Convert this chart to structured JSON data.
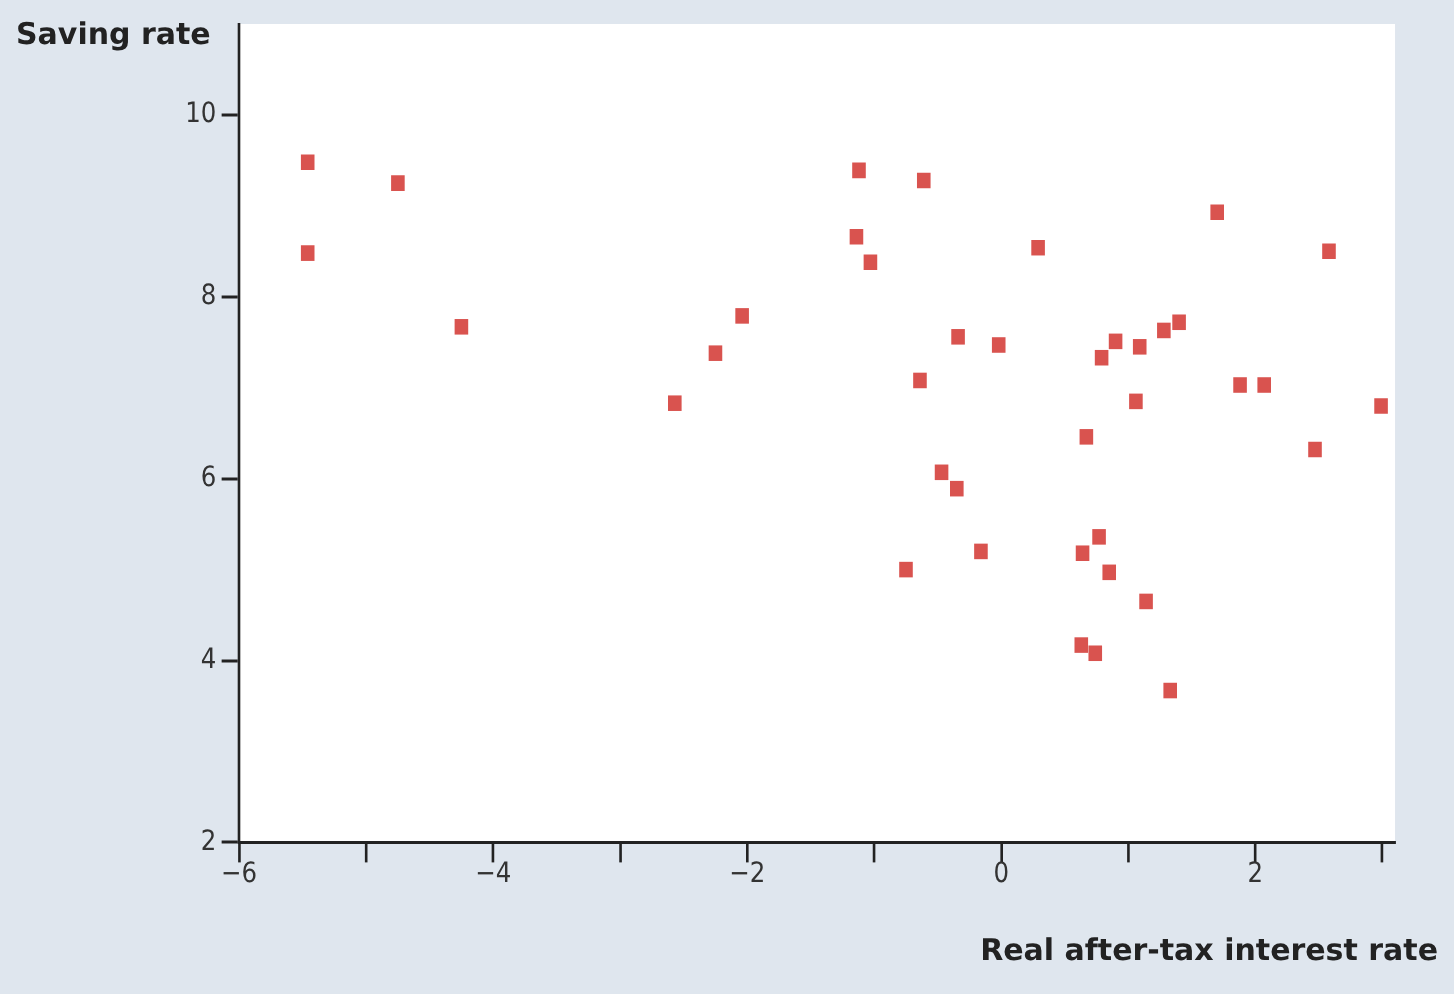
{
  "chart_data": {
    "type": "scatter",
    "xlabel": "Real after-tax interest rate",
    "ylabel": "Saving rate",
    "x": [
      -5.46,
      -5.46,
      -4.75,
      -4.25,
      -2.57,
      -2.25,
      -2.04,
      -1.12,
      -1.14,
      -1.03,
      -0.61,
      -0.64,
      -0.34,
      -0.02,
      -0.47,
      -0.35,
      -0.75,
      -0.16,
      0.29,
      1.7,
      0.67,
      0.79,
      0.9,
      1.09,
      1.28,
      1.4,
      1.06,
      1.88,
      2.07,
      2.47,
      2.58,
      2.99,
      0.64,
      0.77,
      0.85,
      1.14,
      0.63,
      0.74,
      1.33
    ],
    "series": [
      {
        "color": "#d9534f",
        "values": [
          9.48,
          8.48,
          9.25,
          7.67,
          6.83,
          7.38,
          7.79,
          9.39,
          8.66,
          8.38,
          9.28,
          7.08,
          7.56,
          7.47,
          6.07,
          5.89,
          5.0,
          5.2,
          8.54,
          8.93,
          6.46,
          7.33,
          7.51,
          7.45,
          7.63,
          7.72,
          6.85,
          7.03,
          7.03,
          6.32,
          8.5,
          6.8,
          5.18,
          5.36,
          4.97,
          4.65,
          4.17,
          4.08,
          3.67
        ]
      }
    ],
    "marker": "square",
    "xlim": [
      -6,
      3.1
    ],
    "ylim": [
      2,
      11
    ],
    "xticks": [
      -6,
      {
        "value": -5,
        "label": null
      },
      -4,
      {
        "value": -3,
        "label": null
      },
      -2,
      {
        "value": -1,
        "label": null
      },
      0,
      {
        "value": 1,
        "label": null
      },
      2,
      {
        "value": 3,
        "label": null
      }
    ],
    "yticks": [
      2,
      4,
      6,
      8,
      10
    ],
    "grid": false,
    "legend": false
  }
}
